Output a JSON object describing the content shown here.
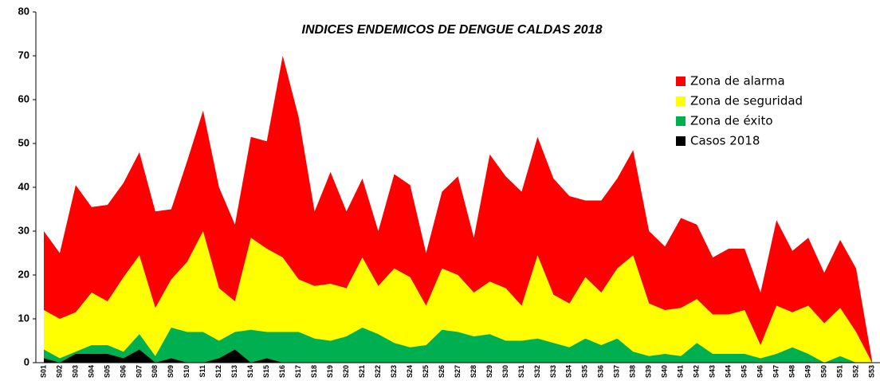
{
  "chart_data": {
    "type": "area",
    "title": "INDICES ENDEMICOS DE DENGUE CALDAS 2018",
    "categories": [
      "S01",
      "S02",
      "S03",
      "S04",
      "S05",
      "S06",
      "S07",
      "S08",
      "S09",
      "S10",
      "S11",
      "S12",
      "S13",
      "S14",
      "S15",
      "S16",
      "S17",
      "S18",
      "S19",
      "S20",
      "S21",
      "S22",
      "S23",
      "S24",
      "S25",
      "S26",
      "S27",
      "S28",
      "S29",
      "S30",
      "S31",
      "S32",
      "S33",
      "S34",
      "S35",
      "S36",
      "S37",
      "S38",
      "S39",
      "S40",
      "S41",
      "S42",
      "S43",
      "S44",
      "S45",
      "S46",
      "S47",
      "S48",
      "S49",
      "S50",
      "S51",
      "S52",
      "S53"
    ],
    "series": [
      {
        "name": "Zona de alarma",
        "color": "#ff0000",
        "values": [
          30,
          25,
          40.5,
          35.5,
          36,
          41,
          48,
          34.5,
          35,
          46,
          57.5,
          40,
          31.5,
          51.5,
          50.5,
          70,
          56,
          34.5,
          43.5,
          34.5,
          42,
          30,
          43,
          40.5,
          25,
          39,
          42.5,
          28.5,
          47.5,
          42.5,
          39,
          51.5,
          42,
          38,
          37,
          37,
          42,
          48.5,
          30,
          26.5,
          33,
          31.5,
          24,
          26,
          26,
          16,
          32.5,
          25.5,
          28.5,
          20.5,
          28,
          21.5,
          0.5
        ]
      },
      {
        "name": "Zona de seguridad",
        "color": "#ffff00",
        "values": [
          12,
          10,
          11.5,
          16,
          14,
          19.5,
          24.5,
          12.5,
          19,
          23,
          30,
          17,
          14,
          28.5,
          26,
          24,
          19,
          17.5,
          18,
          17,
          24,
          17.5,
          21.5,
          19.5,
          13,
          21.5,
          20,
          16,
          18.5,
          17,
          13,
          24.5,
          15.5,
          13.5,
          19.5,
          16,
          21.5,
          24.5,
          13.5,
          12,
          12.5,
          14.5,
          11,
          11,
          12,
          4,
          13,
          11.5,
          13,
          9,
          12.5,
          7,
          0
        ]
      },
      {
        "name": "Zona de éxito",
        "color": "#00b050",
        "values": [
          3,
          1,
          2.5,
          4,
          4,
          2.5,
          6.5,
          1.5,
          8,
          7,
          7,
          5,
          7,
          7.5,
          7,
          7,
          7,
          5.5,
          5,
          6,
          8,
          6.5,
          4.5,
          3.5,
          4,
          7.5,
          7,
          6,
          6.5,
          5,
          5,
          5.5,
          4.5,
          3.5,
          5.5,
          4,
          5.5,
          2.5,
          1.5,
          2,
          1.5,
          4.5,
          2,
          2,
          2,
          1,
          2,
          3.5,
          2,
          0,
          1.5,
          0,
          0
        ]
      },
      {
        "name": "Casos 2018",
        "color": "#000000",
        "values": [
          1,
          0,
          2,
          2,
          2,
          1,
          3,
          0,
          1,
          0,
          0,
          1,
          3,
          0,
          1,
          0,
          null,
          null,
          null,
          null,
          null,
          null,
          null,
          null,
          null,
          null,
          null,
          null,
          null,
          null,
          null,
          null,
          null,
          null,
          null,
          null,
          null,
          null,
          null,
          null,
          null,
          null,
          null,
          null,
          null,
          null,
          null,
          null,
          null,
          null,
          null,
          null,
          null
        ]
      }
    ],
    "ylim": [
      0,
      80
    ],
    "yticks": [
      0,
      10,
      20,
      30,
      40,
      50,
      60,
      70,
      80
    ],
    "grid": false,
    "legend": "upper right"
  }
}
